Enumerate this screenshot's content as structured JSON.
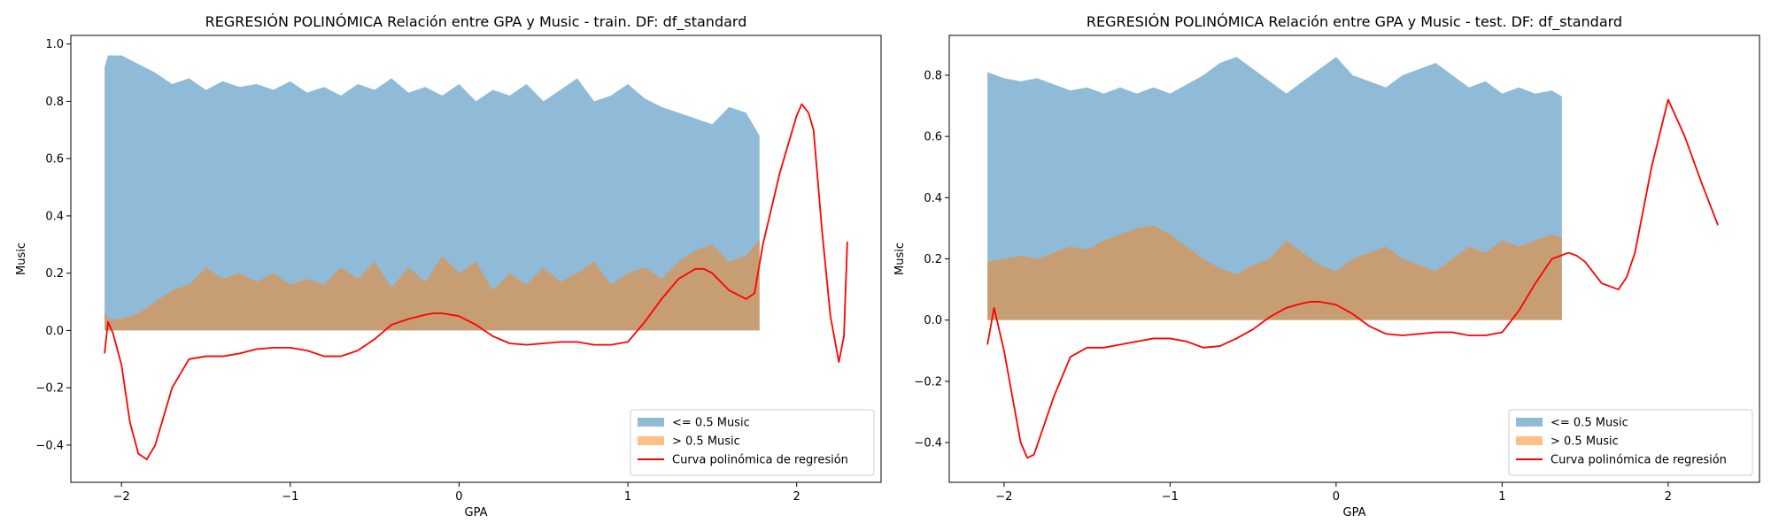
{
  "chart_data": [
    {
      "type": "area",
      "title": "REGRESIÓN POLINÓMICA Relación entre GPA y Music - train. DF: df_standard",
      "xlabel": "GPA",
      "ylabel": "Music",
      "xlim": [
        -2.3,
        2.5
      ],
      "ylim": [
        -0.53,
        1.03
      ],
      "xticks": [
        -2,
        -1,
        0,
        1,
        2
      ],
      "xtick_labels": [
        "−2",
        "−1",
        "0",
        "1",
        "2"
      ],
      "yticks": [
        -0.4,
        -0.2,
        0.0,
        0.2,
        0.4,
        0.6,
        0.8,
        1.0
      ],
      "ytick_labels": [
        "−0.4",
        "−0.2",
        "0.0",
        "0.2",
        "0.4",
        "0.6",
        "0.8",
        "1.0"
      ],
      "legend_position": "lower-right",
      "series": [
        {
          "name": "<= 0.5 Music",
          "kind": "area",
          "color": "#1f77b4",
          "opacity": 0.5,
          "x": [
            -2.1,
            -2.08,
            -2.0,
            -1.9,
            -1.8,
            -1.7,
            -1.6,
            -1.5,
            -1.4,
            -1.3,
            -1.2,
            -1.1,
            -1.0,
            -0.9,
            -0.8,
            -0.7,
            -0.6,
            -0.5,
            -0.4,
            -0.3,
            -0.2,
            -0.1,
            0.0,
            0.1,
            0.2,
            0.3,
            0.4,
            0.5,
            0.6,
            0.7,
            0.8,
            0.9,
            1.0,
            1.1,
            1.2,
            1.3,
            1.4,
            1.5,
            1.6,
            1.7,
            1.78
          ],
          "y": [
            0.92,
            0.96,
            0.96,
            0.93,
            0.9,
            0.86,
            0.88,
            0.84,
            0.87,
            0.85,
            0.86,
            0.84,
            0.87,
            0.83,
            0.85,
            0.82,
            0.86,
            0.84,
            0.88,
            0.83,
            0.85,
            0.82,
            0.86,
            0.8,
            0.84,
            0.82,
            0.86,
            0.8,
            0.84,
            0.88,
            0.8,
            0.82,
            0.86,
            0.81,
            0.78,
            0.76,
            0.74,
            0.72,
            0.78,
            0.76,
            0.68
          ]
        },
        {
          "name": "> 0.5 Music",
          "kind": "area",
          "color": "#ff7f0e",
          "opacity": 0.5,
          "x": [
            -2.1,
            -2.08,
            -2.0,
            -1.9,
            -1.8,
            -1.7,
            -1.6,
            -1.5,
            -1.4,
            -1.3,
            -1.2,
            -1.1,
            -1.0,
            -0.9,
            -0.8,
            -0.7,
            -0.6,
            -0.5,
            -0.4,
            -0.3,
            -0.2,
            -0.1,
            0.0,
            0.1,
            0.2,
            0.3,
            0.4,
            0.5,
            0.6,
            0.7,
            0.8,
            0.9,
            1.0,
            1.1,
            1.2,
            1.3,
            1.4,
            1.5,
            1.6,
            1.7,
            1.78
          ],
          "y": [
            0.07,
            0.04,
            0.04,
            0.06,
            0.1,
            0.14,
            0.16,
            0.22,
            0.18,
            0.2,
            0.17,
            0.2,
            0.16,
            0.18,
            0.16,
            0.22,
            0.18,
            0.24,
            0.15,
            0.22,
            0.17,
            0.26,
            0.2,
            0.24,
            0.14,
            0.2,
            0.16,
            0.22,
            0.17,
            0.2,
            0.24,
            0.16,
            0.2,
            0.22,
            0.18,
            0.24,
            0.28,
            0.3,
            0.24,
            0.26,
            0.32
          ]
        },
        {
          "name": "Curva polinómica de regresión",
          "kind": "line",
          "color": "#ff0000",
          "x": [
            -2.1,
            -2.08,
            -2.05,
            -2.0,
            -1.95,
            -1.9,
            -1.85,
            -1.8,
            -1.7,
            -1.6,
            -1.5,
            -1.4,
            -1.3,
            -1.2,
            -1.1,
            -1.0,
            -0.9,
            -0.8,
            -0.7,
            -0.6,
            -0.5,
            -0.4,
            -0.3,
            -0.2,
            -0.15,
            -0.1,
            0.0,
            0.1,
            0.2,
            0.3,
            0.4,
            0.5,
            0.6,
            0.7,
            0.8,
            0.9,
            1.0,
            1.1,
            1.2,
            1.3,
            1.4,
            1.45,
            1.5,
            1.6,
            1.7,
            1.75,
            1.8,
            1.9,
            2.0,
            2.03,
            2.07,
            2.1,
            2.15,
            2.2,
            2.25,
            2.28,
            2.3
          ],
          "y": [
            -0.08,
            0.03,
            -0.01,
            -0.12,
            -0.32,
            -0.43,
            -0.45,
            -0.4,
            -0.2,
            -0.1,
            -0.09,
            -0.09,
            -0.08,
            -0.065,
            -0.06,
            -0.06,
            -0.07,
            -0.09,
            -0.09,
            -0.07,
            -0.03,
            0.02,
            0.04,
            0.055,
            0.06,
            0.06,
            0.05,
            0.02,
            -0.02,
            -0.045,
            -0.05,
            -0.045,
            -0.04,
            -0.04,
            -0.05,
            -0.05,
            -0.04,
            0.03,
            0.11,
            0.18,
            0.215,
            0.215,
            0.2,
            0.14,
            0.11,
            0.13,
            0.3,
            0.55,
            0.75,
            0.79,
            0.76,
            0.7,
            0.35,
            0.05,
            -0.11,
            -0.02,
            0.31
          ]
        }
      ]
    },
    {
      "type": "area",
      "title": "REGRESIÓN POLINÓMICA Relación entre GPA y Music - test. DF: df_standard",
      "xlabel": "GPA",
      "ylabel": "Music",
      "xlim": [
        -2.33,
        2.55
      ],
      "ylim": [
        -0.53,
        0.93
      ],
      "xticks": [
        -2,
        -1,
        0,
        1,
        2
      ],
      "xtick_labels": [
        "−2",
        "−1",
        "0",
        "1",
        "2"
      ],
      "yticks": [
        -0.4,
        -0.2,
        0.0,
        0.2,
        0.4,
        0.6,
        0.8
      ],
      "ytick_labels": [
        "−0.4",
        "−0.2",
        "0.0",
        "0.2",
        "0.4",
        "0.6",
        "0.8"
      ],
      "legend_position": "lower-right",
      "series": [
        {
          "name": "<= 0.5 Music",
          "kind": "area",
          "color": "#1f77b4",
          "opacity": 0.5,
          "x": [
            -2.1,
            -2.0,
            -1.9,
            -1.8,
            -1.7,
            -1.6,
            -1.5,
            -1.4,
            -1.3,
            -1.2,
            -1.1,
            -1.0,
            -0.9,
            -0.8,
            -0.7,
            -0.6,
            -0.5,
            -0.4,
            -0.3,
            -0.2,
            -0.1,
            0.0,
            0.1,
            0.2,
            0.3,
            0.4,
            0.5,
            0.6,
            0.7,
            0.8,
            0.9,
            1.0,
            1.1,
            1.2,
            1.3,
            1.36
          ],
          "y": [
            0.81,
            0.79,
            0.78,
            0.79,
            0.77,
            0.75,
            0.76,
            0.74,
            0.76,
            0.74,
            0.76,
            0.74,
            0.77,
            0.8,
            0.84,
            0.86,
            0.82,
            0.78,
            0.74,
            0.78,
            0.82,
            0.86,
            0.8,
            0.78,
            0.76,
            0.8,
            0.82,
            0.84,
            0.8,
            0.76,
            0.78,
            0.74,
            0.76,
            0.74,
            0.75,
            0.73
          ]
        },
        {
          "name": "> 0.5 Music",
          "kind": "area",
          "color": "#ff7f0e",
          "opacity": 0.5,
          "x": [
            -2.1,
            -2.0,
            -1.9,
            -1.8,
            -1.7,
            -1.6,
            -1.5,
            -1.4,
            -1.3,
            -1.2,
            -1.1,
            -1.0,
            -0.9,
            -0.8,
            -0.7,
            -0.6,
            -0.5,
            -0.4,
            -0.3,
            -0.2,
            -0.1,
            0.0,
            0.1,
            0.2,
            0.3,
            0.4,
            0.5,
            0.6,
            0.7,
            0.8,
            0.9,
            1.0,
            1.1,
            1.2,
            1.3,
            1.36
          ],
          "y": [
            0.19,
            0.2,
            0.21,
            0.2,
            0.22,
            0.24,
            0.23,
            0.26,
            0.28,
            0.3,
            0.31,
            0.28,
            0.24,
            0.2,
            0.17,
            0.15,
            0.18,
            0.2,
            0.26,
            0.22,
            0.18,
            0.16,
            0.2,
            0.22,
            0.24,
            0.2,
            0.18,
            0.16,
            0.2,
            0.24,
            0.22,
            0.26,
            0.24,
            0.26,
            0.28,
            0.27
          ]
        },
        {
          "name": "Curva polinómica de regresión",
          "kind": "line",
          "color": "#ff0000",
          "x": [
            -2.1,
            -2.06,
            -2.0,
            -1.95,
            -1.9,
            -1.86,
            -1.82,
            -1.7,
            -1.6,
            -1.5,
            -1.4,
            -1.3,
            -1.2,
            -1.1,
            -1.0,
            -0.9,
            -0.8,
            -0.7,
            -0.6,
            -0.5,
            -0.4,
            -0.3,
            -0.2,
            -0.15,
            -0.1,
            0.0,
            0.1,
            0.2,
            0.3,
            0.4,
            0.5,
            0.6,
            0.7,
            0.8,
            0.9,
            1.0,
            1.1,
            1.2,
            1.3,
            1.4,
            1.45,
            1.5,
            1.6,
            1.7,
            1.75,
            1.8,
            1.9,
            2.0,
            2.1,
            2.2,
            2.3
          ],
          "y": [
            -0.08,
            0.04,
            -0.1,
            -0.25,
            -0.4,
            -0.45,
            -0.44,
            -0.25,
            -0.12,
            -0.09,
            -0.09,
            -0.08,
            -0.07,
            -0.06,
            -0.06,
            -0.07,
            -0.09,
            -0.085,
            -0.06,
            -0.03,
            0.01,
            0.04,
            0.055,
            0.06,
            0.06,
            0.05,
            0.02,
            -0.02,
            -0.045,
            -0.05,
            -0.045,
            -0.04,
            -0.04,
            -0.05,
            -0.05,
            -0.04,
            0.03,
            0.12,
            0.2,
            0.22,
            0.21,
            0.19,
            0.12,
            0.1,
            0.14,
            0.22,
            0.5,
            0.72,
            0.6,
            0.45,
            0.31
          ]
        }
      ]
    }
  ]
}
